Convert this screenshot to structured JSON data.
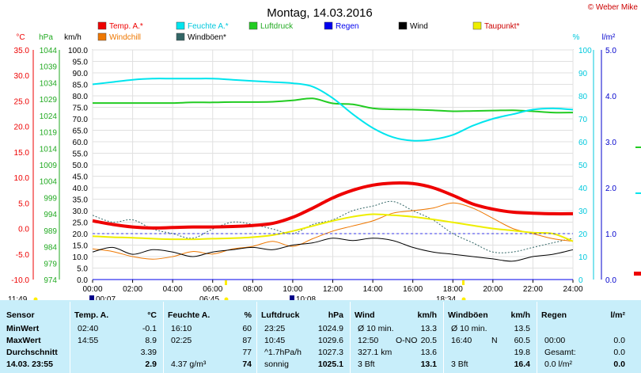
{
  "title": "Montag, 14.03.2016",
  "credit": "© Weber Mike",
  "axes": {
    "temp_unit": "°C",
    "press_unit": "hPa",
    "wind_unit": "km/h",
    "hum_unit": "%",
    "rain_unit": "l/m²",
    "temp_ticks": [
      "35.0",
      "30.0",
      "25.0",
      "20.0",
      "15.0",
      "10.0",
      "5.0",
      "0.0",
      "-5.0",
      "-10.0"
    ],
    "press_ticks": [
      "1044",
      "1039",
      "1034",
      "1029",
      "1024",
      "1019",
      "1014",
      "1009",
      "1004",
      "999",
      "994",
      "989",
      "984",
      "979",
      "974"
    ],
    "wind_ticks": [
      "100.0",
      "95.0",
      "90.0",
      "85.0",
      "80.0",
      "75.0",
      "70.0",
      "65.0",
      "60.0",
      "55.0",
      "50.0",
      "45.0",
      "40.0",
      "35.0",
      "30.0",
      "25.0",
      "20.0",
      "15.0",
      "10.0",
      "5.0",
      "0.0"
    ],
    "hum_ticks": [
      "100",
      "90",
      "80",
      "70",
      "60",
      "50",
      "40",
      "30",
      "20",
      "10",
      "0"
    ],
    "rain_ticks": [
      "5.0",
      "4.0",
      "3.0",
      "2.0",
      "1.0",
      "0.0"
    ],
    "x_ticks": [
      "00:00",
      "02:00",
      "04:00",
      "06:00",
      "08:00",
      "10:00",
      "12:00",
      "14:00",
      "16:00",
      "18:00",
      "20:00",
      "22:00",
      "24:00"
    ]
  },
  "legend": [
    {
      "label": "Temp. A.*",
      "color": "#ee0000"
    },
    {
      "label": "Feuchte A.*",
      "color": "#00e5ee"
    },
    {
      "label": "Luftdruck",
      "color": "#22cc22"
    },
    {
      "label": "Regen",
      "color": "#0000ee"
    },
    {
      "label": "Wind",
      "color": "#000000"
    },
    {
      "label": "Taupunkt*",
      "color": "#eeee00"
    },
    {
      "label": "Windchill",
      "color": "#ee7700"
    },
    {
      "label": "Windböen*",
      "color": "#336666"
    }
  ],
  "sun_events": {
    "sunrise_left": "11:49",
    "t1": "00:07",
    "sunrise": "06:45",
    "t2": "10:08",
    "sunset": "18:34"
  },
  "table": {
    "headers": {
      "sensor": "Sensor",
      "temp": "Temp. A.",
      "temp_u": "°C",
      "hum": "Feuchte A.",
      "hum_u": "%",
      "press": "Luftdruck",
      "press_u": "hPa",
      "wind": "Wind",
      "wind_u": "km/h",
      "gust": "Windböen",
      "gust_u": "km/h",
      "rain": "Regen",
      "rain_u": "l/m²"
    },
    "rows": [
      {
        "label": "MinWert",
        "temp_t": "02:40",
        "temp_v": "-0.1",
        "hum_t": "16:10",
        "hum_v": "60",
        "press_t": "23:25",
        "press_v": "1024.9",
        "wind_a": "Ø 10 min.",
        "wind_b": "",
        "wind_v": "13.3",
        "gust_a": "Ø 10 min.",
        "gust_v": "13.5",
        "rain_a": "",
        "rain_v": ""
      },
      {
        "label": "MaxWert",
        "temp_t": "14:55",
        "temp_v": "8.9",
        "hum_t": "02:25",
        "hum_v": "87",
        "press_t": "10:45",
        "press_v": "1029.6",
        "wind_a": "12:50",
        "wind_b": "O-NO",
        "wind_v": "20.5",
        "gust_a": "16:40",
        "gust_b": "N",
        "gust_v": "60.5",
        "rain_a": "00:00",
        "rain_v": "0.0"
      },
      {
        "label": "Durchschnitt",
        "temp_t": "",
        "temp_v": "3.39",
        "hum_t": "",
        "hum_v": "77",
        "press_t": "^1.7hPa/h",
        "press_v": "1027.3",
        "wind_a": "327.1 km",
        "wind_b": "",
        "wind_v": "13.6",
        "gust_a": "",
        "gust_v": "19.8",
        "rain_a": "Gesamt:",
        "rain_v": "0.0"
      },
      {
        "label": "14.03. 23:55",
        "temp_t": "",
        "temp_v": "2.9",
        "hum_t": "4.37 g/m³",
        "hum_v": "74",
        "press_t": "sonnig",
        "press_v": "1025.1",
        "wind_a": "3 Bft",
        "wind_b": "",
        "wind_v": "13.1",
        "gust_a": "3 Bft",
        "gust_v": "16.4",
        "rain_a": "0.0 l/m²",
        "rain_v": "0.0"
      }
    ]
  },
  "chart_data": {
    "type": "line",
    "x_range": [
      "00:00",
      "24:00"
    ],
    "ylim_temp": [
      -10,
      35
    ],
    "ylim_pressure": [
      974,
      1044
    ],
    "ylim_wind": [
      0,
      100
    ],
    "ylim_humidity": [
      0,
      100
    ],
    "ylim_rain": [
      0,
      5
    ],
    "x_hours": [
      0,
      1,
      2,
      3,
      4,
      5,
      6,
      7,
      8,
      9,
      10,
      11,
      12,
      13,
      14,
      15,
      16,
      17,
      18,
      19,
      20,
      21,
      22,
      23,
      24
    ],
    "series": [
      {
        "name": "Temp. A.*",
        "axis": "temp",
        "color": "#ee0000",
        "values": [
          1.5,
          0.8,
          0.3,
          0.1,
          0.2,
          0.3,
          0.3,
          0.4,
          0.6,
          1.0,
          2.2,
          4.0,
          6.0,
          7.5,
          8.5,
          8.9,
          8.8,
          8.0,
          6.5,
          4.8,
          3.8,
          3.2,
          3.0,
          2.9,
          2.9
        ]
      },
      {
        "name": "Feuchte A.*",
        "axis": "humidity",
        "color": "#00e5ee",
        "values": [
          85,
          86,
          87,
          87.5,
          87.5,
          87.5,
          87.5,
          87,
          86.5,
          86,
          85.5,
          84,
          79,
          72,
          66,
          62,
          60.5,
          61,
          63,
          67,
          70,
          72,
          74,
          74.5,
          74
        ]
      },
      {
        "name": "Luftdruck",
        "axis": "pressure",
        "color": "#22cc22",
        "values": [
          1027.8,
          1027.8,
          1027.8,
          1027.8,
          1027.8,
          1028.0,
          1028.0,
          1028.1,
          1028.1,
          1028.2,
          1028.6,
          1029.2,
          1027.7,
          1027.4,
          1026.2,
          1025.9,
          1025.8,
          1025.6,
          1025.3,
          1025.4,
          1025.5,
          1025.6,
          1025.3,
          1024.9,
          1024.9
        ]
      },
      {
        "name": "Taupunkt*",
        "axis": "temp",
        "color": "#eeee00",
        "values": [
          -1.5,
          -1.7,
          -1.8,
          -2.0,
          -2.1,
          -2.1,
          -2.0,
          -1.9,
          -1.7,
          -1.3,
          -0.5,
          0.5,
          1.5,
          2.3,
          2.8,
          2.6,
          2.3,
          1.8,
          1.2,
          0.6,
          0.0,
          -0.4,
          -0.8,
          -1.0,
          -2.5
        ]
      },
      {
        "name": "Windchill",
        "axis": "temp",
        "color": "#ee7700",
        "values": [
          -4.0,
          -4.5,
          -5.5,
          -6.0,
          -5.5,
          -4.5,
          -5.0,
          -4.0,
          -3.5,
          -2.5,
          -3.5,
          -2.0,
          -0.5,
          0.5,
          1.5,
          3.0,
          3.5,
          4.0,
          5.0,
          4.0,
          2.0,
          0.0,
          -1.0,
          -2.0,
          -2.5
        ]
      },
      {
        "name": "Wind",
        "axis": "wind",
        "color": "#000000",
        "values": [
          12,
          14,
          11,
          13,
          12,
          10,
          12,
          13,
          14,
          13,
          15,
          16,
          18,
          17,
          18,
          17,
          14,
          12,
          11,
          10,
          9,
          8,
          10,
          11,
          13
        ]
      },
      {
        "name": "Windböen*",
        "axis": "wind",
        "color": "#336666",
        "values": [
          28,
          25,
          26,
          22,
          20,
          18,
          22,
          25,
          24,
          22,
          20,
          24,
          26,
          30,
          32,
          34,
          30,
          26,
          20,
          16,
          12,
          12,
          14,
          16,
          18
        ]
      },
      {
        "name": "Regen",
        "axis": "rain",
        "color": "#0000ee",
        "values": [
          0,
          0,
          0,
          0,
          0,
          0,
          0,
          0,
          0,
          0,
          0,
          0,
          0,
          0,
          0,
          0,
          0,
          0,
          0,
          0,
          0,
          0,
          0,
          0,
          0
        ]
      }
    ]
  }
}
